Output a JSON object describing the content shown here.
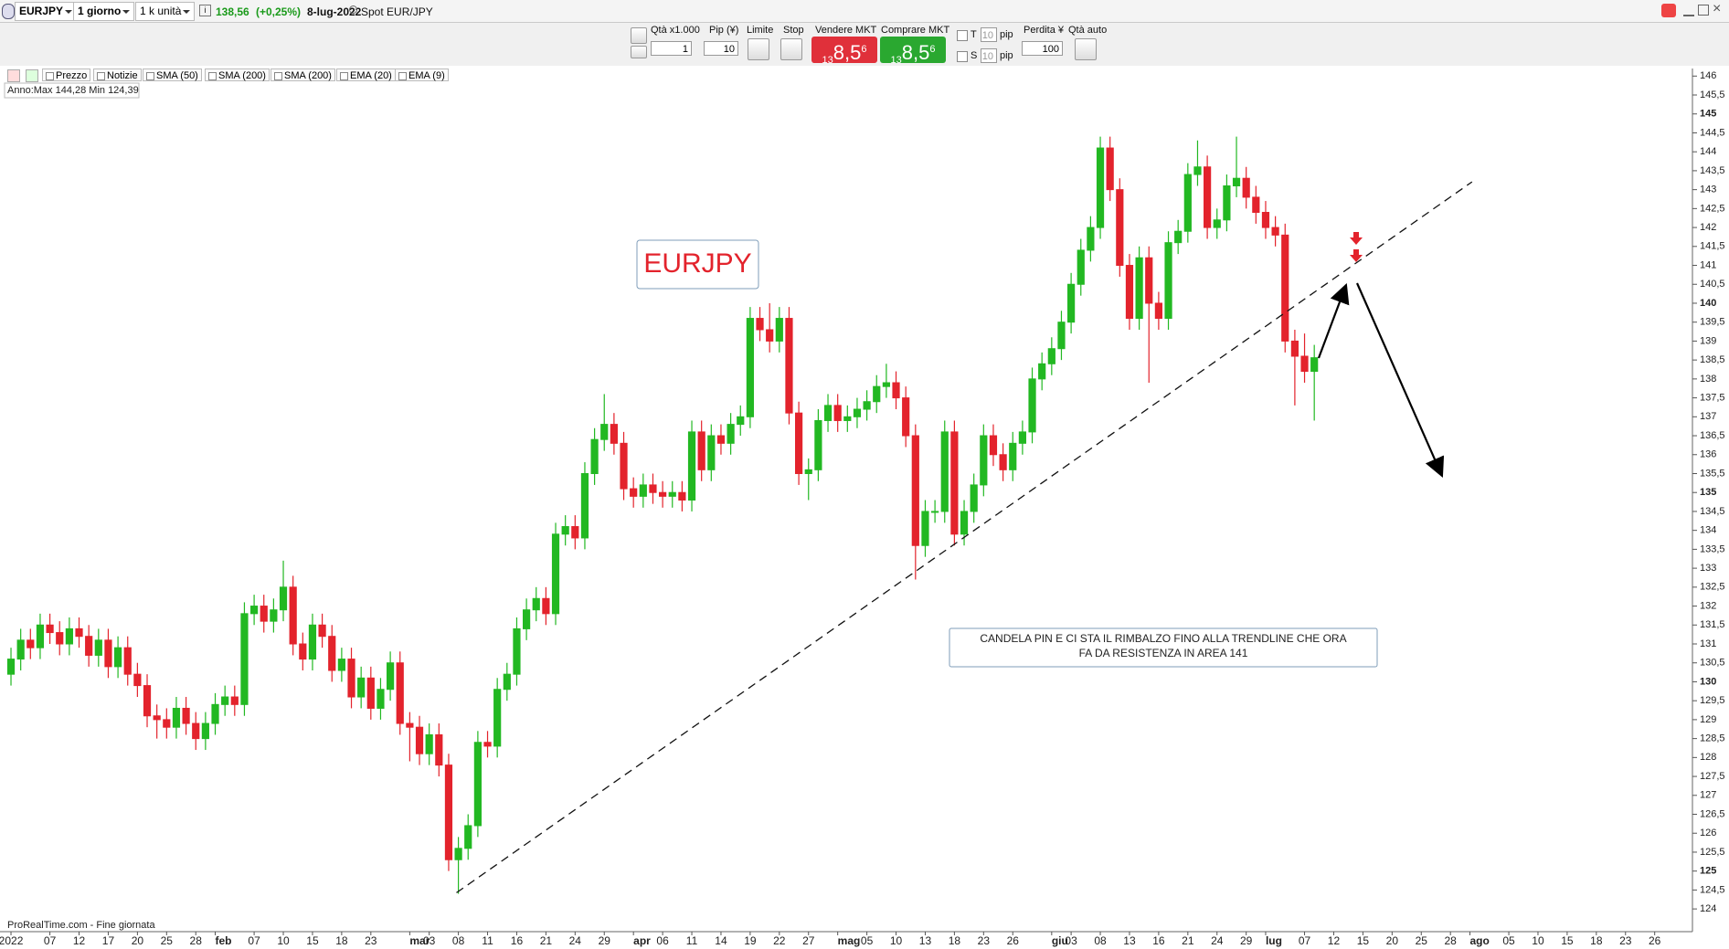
{
  "toolbar": {
    "symbol": "EURJPY",
    "timeframe": "1 giorno",
    "units": "1 k unità",
    "price": "138,56",
    "change": "(+0,25%)",
    "date": "8-lug-2022",
    "instrument": "Spot EUR/JPY"
  },
  "order_panel": {
    "qty_label": "Qtà x1.000",
    "qty": "1",
    "pip_label": "Pip (¥)",
    "pip": "10",
    "limit": "Limite",
    "stop": "Stop",
    "sell_label": "Vendere MKT",
    "sell_price": [
      "13",
      "8,5",
      "6"
    ],
    "buy_label": "Comprare MKT",
    "buy_price": [
      "13",
      "8,5",
      "6"
    ],
    "t": "T",
    "t_value": "10",
    "t_unit": "pip",
    "s": "S",
    "s_value": "10",
    "s_unit": "pip",
    "loss_label": "Perdita ¥",
    "loss": "100",
    "auto_qty": "Qtà auto"
  },
  "indicators": [
    "Prezzo",
    "Notizie",
    "SMA (50)",
    "SMA (200)",
    "SMA (200)",
    "EMA (20)",
    "EMA (9)"
  ],
  "range_info": "Anno:Max 144,28 Min 124,39",
  "footer": "ProRealTime.com - Fine giornata",
  "chart_data": {
    "type": "candlestick",
    "categories": [
      "2022",
      null,
      null,
      null,
      "07",
      null,
      null,
      "12",
      null,
      null,
      "17",
      null,
      null,
      "20",
      null,
      null,
      "25",
      null,
      null,
      "28",
      null,
      "feb",
      null,
      null,
      null,
      "07",
      null,
      null,
      "10",
      null,
      null,
      "15",
      null,
      null,
      "18",
      null,
      null,
      "23",
      null,
      null,
      null,
      "mar",
      null,
      "03",
      null,
      null,
      "08",
      null,
      null,
      "11",
      null,
      null,
      "16",
      null,
      null,
      "21",
      null,
      null,
      "24",
      null,
      null,
      "29",
      null,
      null,
      "apr",
      null,
      null,
      "06",
      null,
      null,
      "11",
      null,
      null,
      "14",
      null,
      null,
      "19",
      null,
      null,
      "22",
      null,
      null,
      "27",
      null,
      null,
      "mag",
      null,
      null,
      "05",
      null,
      null,
      "10",
      null,
      null,
      "13",
      null,
      null,
      "18",
      null,
      null,
      "23",
      null,
      null,
      "26",
      null,
      null,
      null,
      "giu",
      null,
      "03",
      null,
      null,
      "08",
      null,
      null,
      "13",
      null,
      null,
      "16",
      null,
      null,
      "21",
      null,
      null,
      "24",
      null,
      null,
      "29",
      null,
      "lug",
      null,
      null,
      null,
      "07",
      null,
      null,
      "12",
      null,
      null,
      "15",
      null,
      null,
      "20",
      null,
      null,
      "25",
      null,
      null,
      "28",
      null,
      "ago",
      null,
      null,
      null,
      "05",
      null,
      null,
      "10",
      null,
      null,
      "15",
      null,
      null,
      "18",
      null,
      null,
      "23",
      null,
      null,
      "26"
    ],
    "open": [
      130.2,
      130.6,
      131.1,
      130.9,
      131.5,
      131.3,
      131.0,
      131.4,
      131.2,
      130.7,
      131.1,
      130.4,
      130.9,
      130.2,
      129.9,
      129.1,
      129.0,
      128.8,
      129.3,
      128.9,
      128.5,
      128.9,
      129.4,
      129.6,
      129.4,
      131.8,
      132.0,
      131.6,
      131.9,
      132.5,
      131.0,
      130.6,
      131.5,
      131.2,
      130.3,
      130.6,
      129.6,
      130.1,
      129.3,
      129.8,
      130.5,
      128.9,
      128.8,
      128.1,
      128.6,
      127.8,
      125.3,
      125.6,
      126.2,
      128.4,
      128.3,
      129.8,
      130.2,
      131.4,
      131.9,
      132.2,
      131.8,
      133.9,
      134.1,
      133.8,
      135.5,
      136.4,
      136.8,
      136.3,
      135.1,
      134.9,
      135.2,
      135.0,
      134.9,
      135.0,
      134.8,
      136.6,
      135.6,
      136.5,
      136.3,
      136.8,
      137.0,
      139.6,
      139.3,
      139.0,
      139.6,
      137.1,
      135.5,
      135.6,
      136.9,
      137.3,
      136.9,
      137.0,
      137.2,
      137.4,
      137.8,
      137.9,
      137.5,
      136.5,
      133.6,
      134.5,
      134.5,
      136.6,
      133.9,
      134.5,
      135.2,
      136.5,
      136.0,
      135.6,
      136.3,
      136.6,
      138.0,
      138.4,
      138.8,
      139.5,
      140.5,
      141.4,
      142.0,
      144.1,
      143.0,
      141.0,
      139.6,
      141.2,
      140.0,
      139.6,
      141.6,
      141.9,
      143.4,
      143.6,
      142.0,
      142.2,
      143.1,
      143.3,
      142.8,
      142.4,
      142.0,
      141.8,
      139.0,
      138.6,
      138.2,
      null,
      null,
      null,
      null,
      null,
      null,
      null,
      null,
      null,
      null,
      null,
      null,
      null,
      null,
      null,
      null,
      null,
      null,
      null,
      null,
      null,
      null,
      null,
      null,
      null,
      null,
      null,
      null,
      null,
      null,
      null,
      null,
      null,
      null,
      null
    ],
    "high": [
      130.9,
      131.4,
      131.4,
      131.8,
      131.8,
      131.6,
      131.7,
      131.7,
      131.5,
      131.4,
      131.4,
      131.2,
      131.2,
      130.5,
      130.2,
      129.4,
      129.3,
      129.6,
      129.6,
      129.2,
      129.2,
      129.7,
      129.9,
      129.9,
      132.1,
      132.3,
      132.3,
      132.2,
      133.2,
      132.8,
      131.3,
      131.8,
      131.8,
      131.5,
      130.9,
      130.9,
      130.4,
      130.4,
      130.1,
      130.8,
      130.8,
      129.2,
      129.1,
      128.9,
      128.9,
      128.1,
      125.9,
      126.5,
      128.7,
      128.7,
      130.1,
      130.5,
      131.7,
      132.2,
      132.5,
      132.5,
      134.2,
      134.4,
      134.4,
      135.8,
      136.7,
      137.6,
      137.1,
      136.6,
      135.4,
      135.5,
      135.5,
      135.3,
      135.3,
      135.3,
      136.9,
      136.9,
      136.8,
      136.8,
      137.1,
      137.3,
      139.9,
      139.9,
      140.0,
      139.9,
      139.9,
      137.4,
      135.9,
      137.2,
      137.6,
      137.6,
      137.3,
      137.5,
      137.7,
      138.1,
      138.4,
      138.2,
      137.8,
      136.8,
      134.8,
      134.8,
      136.9,
      136.9,
      134.8,
      135.5,
      136.8,
      136.8,
      136.3,
      136.6,
      136.9,
      138.3,
      138.7,
      139.1,
      139.8,
      140.8,
      141.7,
      142.3,
      144.4,
      144.4,
      143.3,
      141.3,
      141.5,
      141.5,
      140.3,
      141.9,
      142.2,
      143.7,
      144.3,
      143.9,
      142.5,
      143.4,
      144.4,
      143.6,
      143.1,
      142.7,
      142.3,
      142.1,
      139.3,
      139.2,
      138.9,
      null,
      null,
      null,
      null,
      null,
      null,
      null,
      null,
      null,
      null,
      null,
      null,
      null,
      null,
      null,
      null,
      null,
      null,
      null,
      null,
      null,
      null,
      null,
      null,
      null,
      null,
      null,
      null,
      null,
      null,
      null,
      null,
      null,
      null,
      null
    ],
    "low": [
      129.9,
      130.3,
      130.6,
      130.6,
      131.0,
      130.7,
      130.7,
      130.9,
      130.4,
      130.4,
      130.1,
      130.1,
      129.9,
      129.6,
      128.8,
      128.5,
      128.5,
      128.5,
      128.6,
      128.2,
      128.2,
      128.6,
      129.1,
      129.1,
      129.1,
      131.5,
      131.3,
      131.3,
      131.6,
      130.7,
      130.3,
      130.3,
      130.9,
      130.0,
      130.0,
      129.3,
      129.3,
      129.0,
      129.0,
      129.5,
      128.6,
      127.9,
      127.8,
      127.8,
      127.5,
      125.0,
      124.4,
      125.3,
      125.9,
      128.0,
      128.0,
      129.5,
      129.9,
      131.1,
      131.6,
      131.5,
      131.5,
      133.6,
      133.5,
      133.5,
      135.2,
      136.1,
      136.0,
      134.8,
      134.6,
      134.6,
      134.7,
      134.6,
      134.6,
      134.5,
      134.5,
      135.3,
      135.3,
      136.0,
      136.0,
      136.5,
      136.7,
      139.0,
      138.7,
      138.7,
      136.8,
      135.2,
      134.8,
      135.3,
      136.6,
      136.6,
      136.6,
      136.7,
      136.9,
      137.1,
      137.5,
      137.2,
      136.2,
      132.7,
      133.3,
      134.2,
      134.2,
      133.6,
      133.6,
      134.2,
      134.9,
      135.7,
      135.3,
      135.3,
      136.0,
      136.3,
      137.7,
      138.1,
      138.5,
      139.2,
      140.2,
      141.1,
      141.7,
      142.7,
      140.7,
      139.3,
      139.3,
      137.9,
      139.3,
      139.3,
      141.3,
      141.6,
      143.1,
      141.7,
      141.7,
      141.9,
      142.8,
      142.5,
      142.1,
      141.7,
      141.5,
      138.7,
      137.3,
      137.9,
      136.9,
      null,
      null,
      null,
      null,
      null,
      null,
      null,
      null,
      null,
      null,
      null,
      null,
      null,
      null,
      null,
      null,
      null,
      null,
      null,
      null,
      null,
      null,
      null,
      null,
      null,
      null,
      null,
      null,
      null,
      null,
      null,
      null,
      null,
      null,
      null
    ],
    "close": [
      130.6,
      131.1,
      130.9,
      131.5,
      131.3,
      131.0,
      131.4,
      131.2,
      130.7,
      131.1,
      130.4,
      130.9,
      130.2,
      129.9,
      129.1,
      129.0,
      128.8,
      129.3,
      128.9,
      128.5,
      128.9,
      129.4,
      129.6,
      129.4,
      131.8,
      132.0,
      131.6,
      131.9,
      132.5,
      131.0,
      130.6,
      131.5,
      131.2,
      130.3,
      130.6,
      129.6,
      130.1,
      129.3,
      129.8,
      130.5,
      128.9,
      128.8,
      128.1,
      128.6,
      127.8,
      125.3,
      125.6,
      126.2,
      128.4,
      128.3,
      129.8,
      130.2,
      131.4,
      131.9,
      132.2,
      131.8,
      133.9,
      134.1,
      133.8,
      135.5,
      136.4,
      136.8,
      136.3,
      135.1,
      134.9,
      135.2,
      135.0,
      134.9,
      135.0,
      134.8,
      136.6,
      135.6,
      136.5,
      136.3,
      136.8,
      137.0,
      139.6,
      139.3,
      139.0,
      139.6,
      137.1,
      135.5,
      135.6,
      136.9,
      137.3,
      136.9,
      137.0,
      137.2,
      137.4,
      137.8,
      137.9,
      137.5,
      136.5,
      133.6,
      134.5,
      134.5,
      136.6,
      133.9,
      134.5,
      135.2,
      136.5,
      136.0,
      135.6,
      136.3,
      136.6,
      138.0,
      138.4,
      138.8,
      139.5,
      140.5,
      141.4,
      142.0,
      144.1,
      143.0,
      141.0,
      139.6,
      141.2,
      140.0,
      139.6,
      141.6,
      141.9,
      143.4,
      143.6,
      142.0,
      142.2,
      143.1,
      143.3,
      142.8,
      142.4,
      142.0,
      141.8,
      139.0,
      138.6,
      138.2,
      138.56,
      null,
      null,
      null,
      null,
      null,
      null,
      null,
      null,
      null,
      null,
      null,
      null,
      null,
      null,
      null,
      null,
      null,
      null,
      null,
      null,
      null,
      null,
      null,
      null,
      null,
      null,
      null,
      null,
      null,
      null,
      null,
      null,
      null,
      null,
      null
    ],
    "up_color": "#22b822",
    "down_color": "#e3232c",
    "ylim": [
      123.4,
      146.2
    ],
    "yticks": [
      124,
      {
        "value": 124.5,
        "label": "124,5"
      },
      125,
      {
        "value": 125.5,
        "label": "125,5"
      },
      126,
      {
        "value": 126.5,
        "label": "126,5"
      },
      127,
      {
        "value": 127.5,
        "label": "127,5"
      },
      128,
      {
        "value": 128.5,
        "label": "128,5"
      },
      129,
      {
        "value": 129.5,
        "label": "129,5"
      },
      130,
      {
        "value": 130.5,
        "label": "130,5"
      },
      131,
      {
        "value": 131.5,
        "label": "131,5"
      },
      132,
      {
        "value": 132.5,
        "label": "132,5"
      },
      133,
      {
        "value": 133.5,
        "label": "133,5"
      },
      134,
      {
        "value": 134.5,
        "label": "134,5"
      },
      135,
      {
        "value": 135.5,
        "label": "135,5"
      },
      136,
      {
        "value": 136.5,
        "label": "136,5"
      },
      137,
      {
        "value": 137.5,
        "label": "137,5"
      },
      138,
      {
        "value": 138.5,
        "label": "138,5"
      },
      139,
      {
        "value": 139.5,
        "label": "139,5"
      },
      140,
      {
        "value": 140.5,
        "label": "140,5"
      },
      141,
      {
        "value": 141.5,
        "label": "141,5"
      },
      142,
      {
        "value": 142.5,
        "label": "142,5"
      },
      143,
      {
        "value": 143.5,
        "label": "143,5"
      },
      144,
      {
        "value": 144.5,
        "label": "144,5"
      },
      145,
      {
        "value": 145.5,
        "label": "145,5"
      },
      146
    ],
    "grid": false,
    "label": "EURJPY",
    "note": [
      "CANDELA PIN E CI STA IL RIMBALZO FINO ALLA TRENDLINE CHE ORA",
      "FA DA RESISTENZA IN AREA 141"
    ]
  }
}
